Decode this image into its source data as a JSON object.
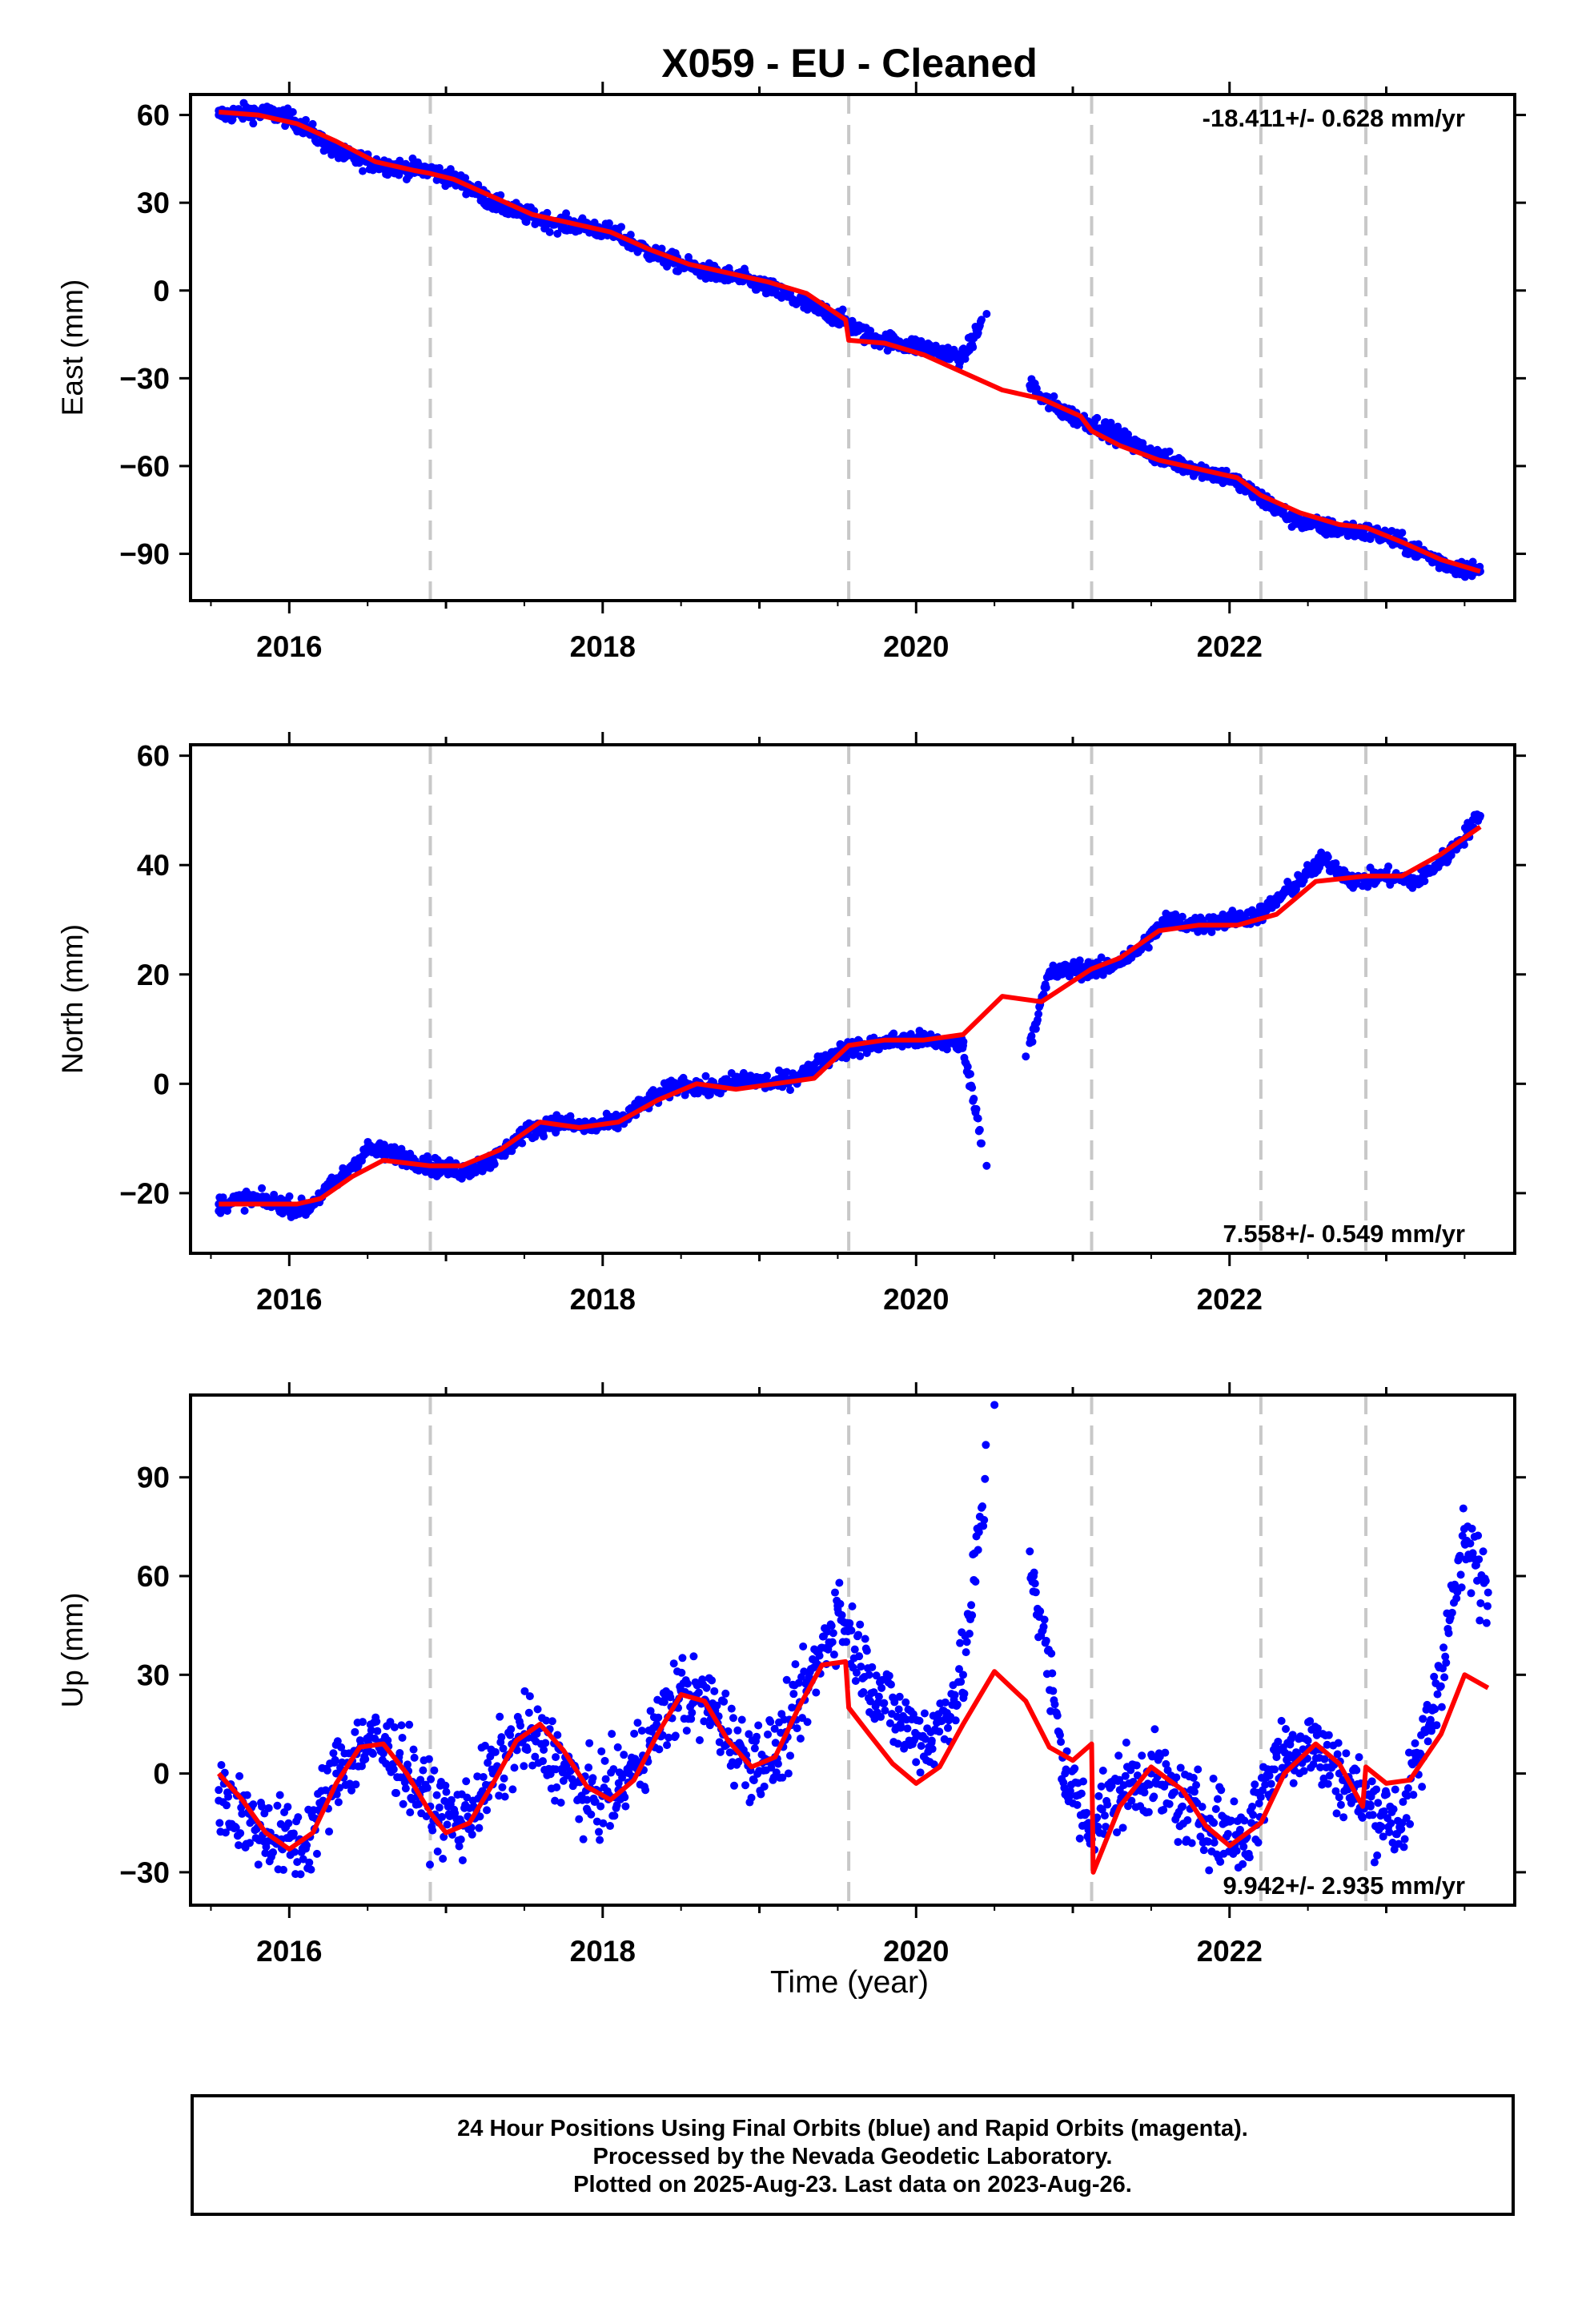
{
  "title": "X059  - EU - Cleaned",
  "colors": {
    "points": "#0000ff",
    "model": "#ff0000",
    "steps": "#c8c8c8",
    "frame": "#000000"
  },
  "x_axis": {
    "label": "Time (year)",
    "ticks": [
      "2016",
      "2018",
      "2020",
      "2022"
    ]
  },
  "footer": {
    "line1": "24 Hour Positions Using Final Orbits (blue) and Rapid Orbits (magenta).",
    "line2": "Processed by the Nevada Geodetic Laboratory.",
    "line3": "Plotted on 2025-Aug-23. Last data on 2023-Aug-26."
  },
  "chart_data": [
    {
      "type": "scatter",
      "component": "east",
      "ylabel": "East (mm)",
      "rate_text": "-18.411+/- 0.628 mm/yr",
      "rate_position": "top-right",
      "xlim": [
        2015.37,
        2023.82
      ],
      "ylim": [
        -106,
        67
      ],
      "yticks": [
        60,
        30,
        0,
        -30,
        -60,
        -90
      ],
      "steps": [
        2016.9,
        2019.57,
        2021.12,
        2022.2,
        2022.87
      ],
      "series": [
        {
          "name": "data",
          "x": [
            2015.55,
            2015.75,
            2015.95,
            2016.1,
            2016.3,
            2016.5,
            2016.7,
            2016.9,
            2017.1,
            2017.3,
            2017.5,
            2017.7,
            2017.9,
            2018.1,
            2018.3,
            2018.5,
            2018.7,
            2018.9,
            2019.1,
            2019.3,
            2019.5,
            2019.7,
            2019.9,
            2020.1,
            2020.3,
            2020.45,
            2020.8,
            2021.0,
            2021.2,
            2021.4,
            2021.6,
            2021.8,
            2022.0,
            2022.2,
            2022.4,
            2022.6,
            2022.8,
            2023.0,
            2023.2,
            2023.4,
            2023.6
          ],
          "y": [
            60,
            61,
            60,
            56,
            47,
            44,
            42,
            41,
            37,
            30,
            26,
            23,
            22,
            19,
            13,
            9,
            6,
            4,
            0,
            -5,
            -9,
            -16,
            -18,
            -20,
            -23,
            -8,
            -37,
            -43,
            -47,
            -53,
            -58,
            -61,
            -64,
            -71,
            -78,
            -81,
            -82,
            -84,
            -89,
            -94,
            -96
          ]
        },
        {
          "name": "model",
          "x": [
            2015.55,
            2015.8,
            2016.05,
            2016.3,
            2016.55,
            2016.8,
            2016.9,
            2017.05,
            2017.3,
            2017.55,
            2017.8,
            2018.05,
            2018.3,
            2018.55,
            2018.8,
            2019.05,
            2019.3,
            2019.55,
            2019.57,
            2019.8,
            2020.05,
            2020.3,
            2020.55,
            2020.8,
            2021.05,
            2021.12,
            2021.3,
            2021.55,
            2021.8,
            2022.05,
            2022.2,
            2022.45,
            2022.7,
            2022.87,
            2023.1,
            2023.35,
            2023.6
          ],
          "y": [
            61,
            60,
            57,
            51,
            44,
            41,
            40,
            38,
            32,
            26,
            23,
            20,
            14,
            9,
            6,
            3,
            -1,
            -10,
            -17,
            -18,
            -22,
            -28,
            -34,
            -37,
            -43,
            -48,
            -53,
            -58,
            -61,
            -64,
            -70,
            -76,
            -80,
            -81,
            -86,
            -92,
            -96
          ]
        }
      ]
    },
    {
      "type": "scatter",
      "component": "north",
      "ylabel": "North (mm)",
      "rate_text": "7.558+/- 0.549 mm/yr",
      "rate_position": "bottom-right",
      "xlim": [
        2015.37,
        2023.82
      ],
      "ylim": [
        -31,
        62
      ],
      "yticks": [
        60,
        40,
        20,
        0,
        -20
      ],
      "steps": [
        2016.9,
        2019.57,
        2021.12,
        2022.2,
        2022.87
      ],
      "series": [
        {
          "name": "data",
          "x": [
            2015.55,
            2015.75,
            2015.95,
            2016.1,
            2016.3,
            2016.5,
            2016.7,
            2016.9,
            2017.1,
            2017.3,
            2017.5,
            2017.7,
            2017.9,
            2018.1,
            2018.3,
            2018.5,
            2018.7,
            2018.9,
            2019.1,
            2019.3,
            2019.5,
            2019.7,
            2019.9,
            2020.1,
            2020.3,
            2020.45,
            2020.7,
            2020.85,
            2021.0,
            2021.2,
            2021.4,
            2021.6,
            2021.8,
            2022.0,
            2022.2,
            2022.4,
            2022.6,
            2022.8,
            2023.0,
            2023.2,
            2023.4,
            2023.6
          ],
          "y": [
            -22,
            -21,
            -22,
            -23,
            -18,
            -12,
            -13,
            -15,
            -16,
            -14,
            -9,
            -7,
            -8,
            -7,
            -3,
            0,
            -1,
            1,
            0,
            2,
            6,
            7,
            8,
            8,
            7,
            -15,
            5,
            20,
            21,
            21,
            24,
            30,
            29,
            30,
            31,
            36,
            41,
            37,
            38,
            37,
            42,
            49
          ]
        },
        {
          "name": "model",
          "x": [
            2015.55,
            2015.8,
            2016.05,
            2016.2,
            2016.4,
            2016.6,
            2016.9,
            2017.1,
            2017.35,
            2017.6,
            2017.85,
            2018.1,
            2018.35,
            2018.6,
            2018.85,
            2019.1,
            2019.35,
            2019.57,
            2019.8,
            2020.05,
            2020.3,
            2020.55,
            2020.8,
            2021.12,
            2021.3,
            2021.55,
            2021.8,
            2022.05,
            2022.3,
            2022.55,
            2022.87,
            2023.1,
            2023.35,
            2023.6
          ],
          "y": [
            -22,
            -22,
            -22,
            -21,
            -17,
            -14,
            -15,
            -15,
            -12,
            -7,
            -8,
            -7,
            -3,
            0,
            -1,
            0,
            1,
            7,
            8,
            8,
            9,
            16,
            15,
            21,
            23,
            28,
            29,
            29,
            31,
            37,
            38,
            38,
            42,
            47
          ]
        }
      ]
    },
    {
      "type": "scatter",
      "component": "up",
      "ylabel": "Up (mm)",
      "rate_text": "9.942+/- 2.935 mm/yr",
      "rate_position": "bottom-right",
      "xlim": [
        2015.37,
        2023.82
      ],
      "ylim": [
        -40,
        115
      ],
      "yticks": [
        90,
        60,
        30,
        0,
        -30
      ],
      "steps": [
        2016.9,
        2019.57,
        2021.12,
        2022.2,
        2022.87
      ],
      "series": [
        {
          "name": "data",
          "x": [
            2015.55,
            2015.75,
            2015.95,
            2016.1,
            2016.3,
            2016.5,
            2016.7,
            2016.9,
            2017.1,
            2017.3,
            2017.5,
            2017.7,
            2017.9,
            2018.1,
            2018.3,
            2018.5,
            2018.7,
            2018.9,
            2019.1,
            2019.3,
            2019.5,
            2019.7,
            2019.9,
            2020.1,
            2020.3,
            2020.5,
            2020.75,
            2020.95,
            2021.1,
            2021.3,
            2021.5,
            2021.7,
            2021.9,
            2022.1,
            2022.3,
            2022.5,
            2022.7,
            2022.9,
            2023.1,
            2023.3,
            2023.5,
            2023.65
          ],
          "y": [
            -5,
            -15,
            -20,
            -22,
            0,
            10,
            5,
            -10,
            -15,
            0,
            12,
            5,
            -8,
            -5,
            10,
            25,
            20,
            5,
            5,
            25,
            50,
            30,
            15,
            10,
            30,
            112,
            60,
            0,
            -15,
            -5,
            0,
            -10,
            -15,
            -20,
            5,
            10,
            0,
            -10,
            -15,
            20,
            70,
            55
          ]
        },
        {
          "name": "model",
          "x": [
            2015.55,
            2015.7,
            2015.85,
            2016.0,
            2016.15,
            2016.3,
            2016.45,
            2016.6,
            2016.75,
            2016.9,
            2017.0,
            2017.15,
            2017.3,
            2017.45,
            2017.6,
            2017.75,
            2017.9,
            2018.05,
            2018.2,
            2018.35,
            2018.5,
            2018.65,
            2018.8,
            2018.95,
            2019.1,
            2019.25,
            2019.4,
            2019.55,
            2019.57,
            2019.7,
            2019.85,
            2020.0,
            2020.15,
            2020.3,
            2020.5,
            2020.7,
            2020.85,
            2021.0,
            2021.12,
            2021.13,
            2021.3,
            2021.5,
            2021.7,
            2021.85,
            2022.0,
            2022.2,
            2022.35,
            2022.55,
            2022.7,
            2022.85,
            2022.87,
            2023.0,
            2023.15,
            2023.35,
            2023.5,
            2023.65
          ],
          "y": [
            0,
            -8,
            -18,
            -23,
            -18,
            -3,
            8,
            9,
            0,
            -12,
            -18,
            -15,
            -3,
            10,
            15,
            7,
            -4,
            -8,
            -2,
            12,
            24,
            22,
            10,
            2,
            5,
            20,
            33,
            34,
            20,
            12,
            3,
            -3,
            2,
            15,
            31,
            22,
            8,
            4,
            9,
            -30,
            -10,
            2,
            -5,
            -16,
            -22,
            -15,
            0,
            9,
            3,
            -10,
            2,
            -3,
            -2,
            12,
            30,
            26
          ]
        }
      ]
    }
  ]
}
